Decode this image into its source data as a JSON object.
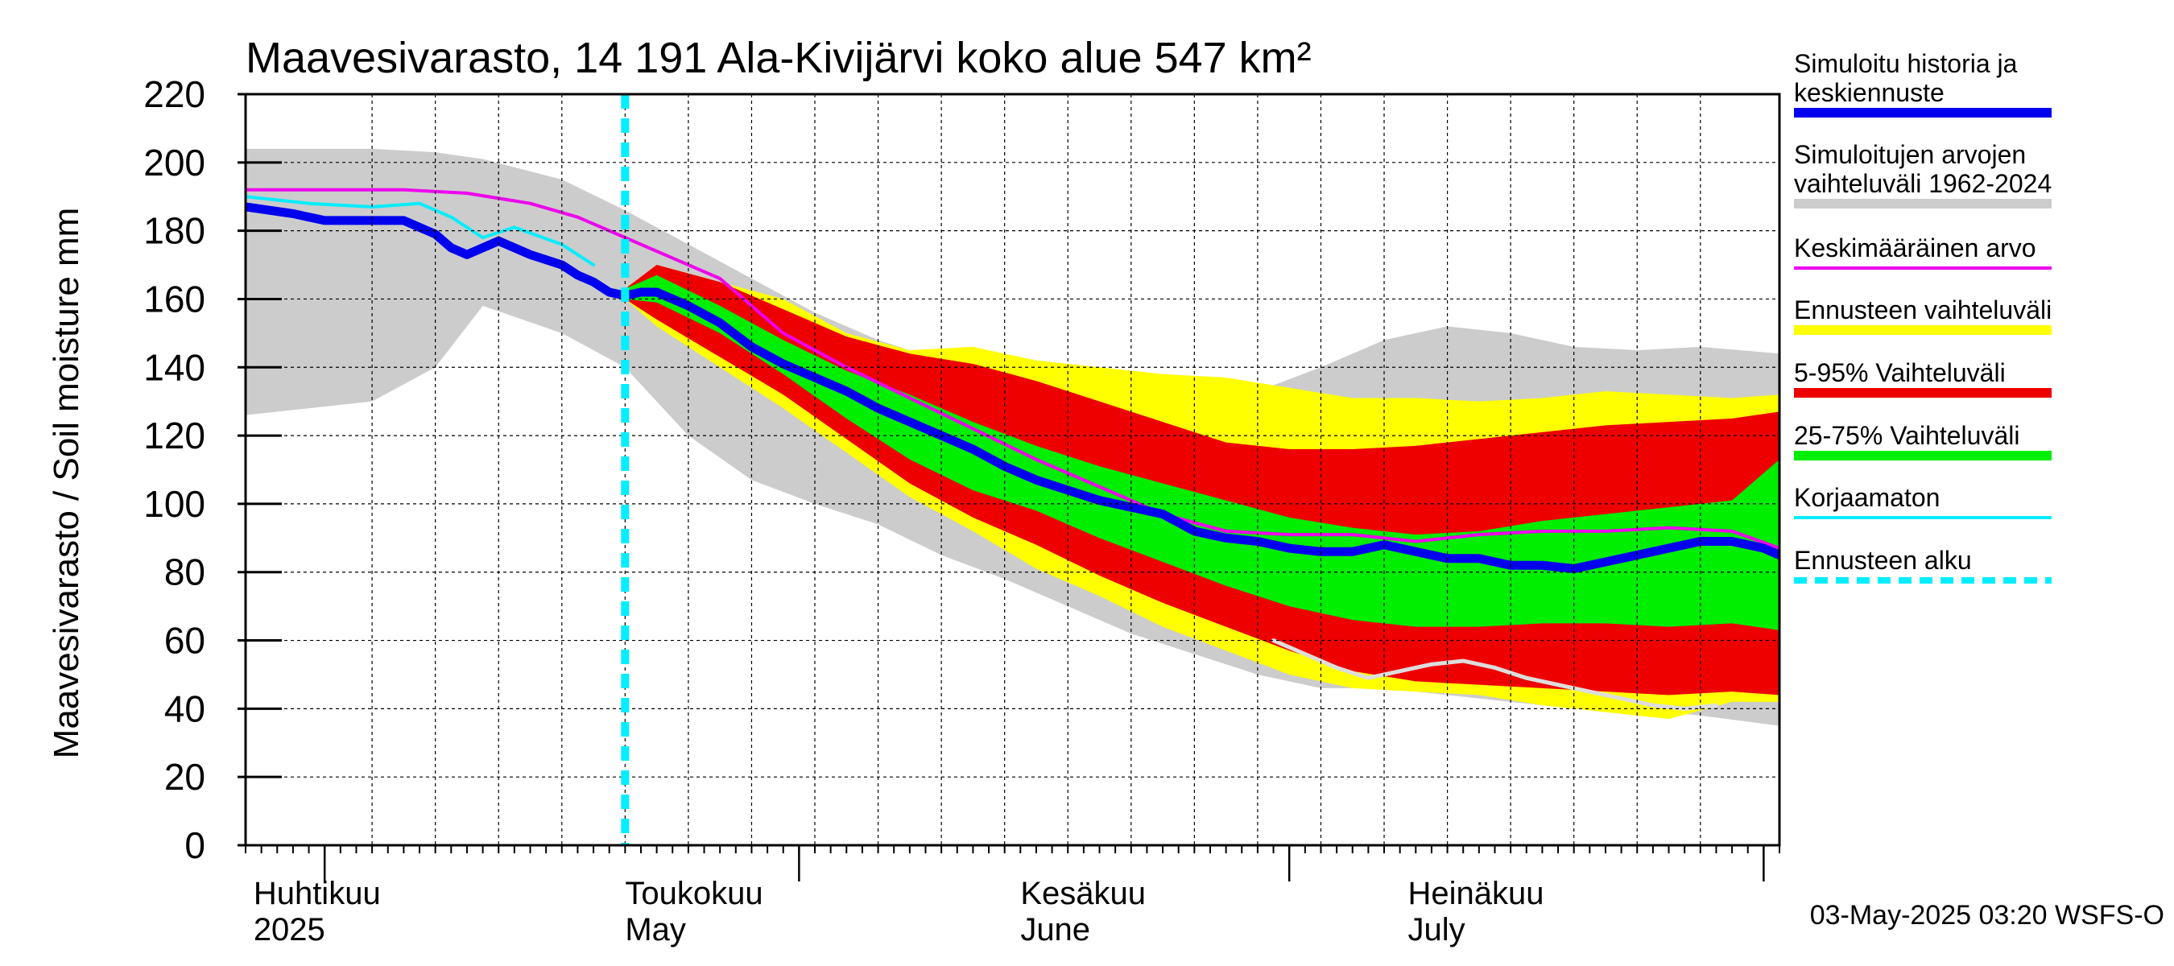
{
  "chart_data": {
    "type": "area",
    "title": "Maavesivarasto, 14 191 Ala-Kivijärvi koko alue 547 km²",
    "ylabel": "Maavesivarasto / Soil moisture   mm",
    "xlabel": "",
    "ylim": [
      0,
      220
    ],
    "yticks": [
      0,
      20,
      40,
      60,
      80,
      100,
      120,
      140,
      160,
      180,
      200,
      220
    ],
    "x_range": [
      0,
      97
    ],
    "x_unit": "days since 2025-03-27",
    "forecast_start": 24,
    "month_starts": [
      5,
      35,
      66,
      96
    ],
    "week_lines": [
      8,
      12,
      16,
      20,
      24,
      28,
      32,
      36,
      40,
      44,
      48,
      52,
      56,
      60,
      64,
      68,
      72,
      76,
      80,
      84,
      88,
      92
    ],
    "month_labels": [
      {
        "x": 0.5,
        "fi": "Huhtikuu",
        "en": "2025"
      },
      {
        "x": 24,
        "fi": "Toukokuu",
        "en": "May"
      },
      {
        "x": 49,
        "fi": "Kesäkuu",
        "en": "June"
      },
      {
        "x": 73.5,
        "fi": "Heinäkuu",
        "en": "July"
      }
    ],
    "legend": [
      {
        "label": "Simuloitu historia ja keskiennuste",
        "color": "#0000ee",
        "style": "thick"
      },
      {
        "label": "Simuloitujen arvojen vaihteluväli 1962-2024",
        "color": "#cccccc",
        "style": "thick"
      },
      {
        "label": "Keskimääräinen arvo",
        "color": "#ee00ee",
        "style": "line"
      },
      {
        "label": "Ennusteen vaihteluväli",
        "color": "#ffff00",
        "style": "thick"
      },
      {
        "label": "5-95% Vaihteluväli",
        "color": "#ee0000",
        "style": "thick"
      },
      {
        "label": "25-75% Vaihteluväli",
        "color": "#00ee00",
        "style": "thick"
      },
      {
        "label": "Korjaamaton",
        "color": "#00eeff",
        "style": "line"
      },
      {
        "label": "Ennusteen alku",
        "color": "#00eeff",
        "style": "dashed"
      }
    ],
    "series": [
      {
        "name": "Simuloitujen arvojen vaihteluväli 1962-2024",
        "kind": "band",
        "color": "#cccccc",
        "x": [
          0,
          8,
          12,
          15,
          20,
          24,
          28,
          32,
          36,
          40,
          44,
          48,
          52,
          56,
          60,
          64,
          68,
          72,
          76,
          80,
          84,
          88,
          92,
          97
        ],
        "upper": [
          204,
          204,
          203,
          201,
          195,
          186,
          176,
          166,
          156,
          148,
          142,
          140,
          140,
          138,
          136,
          133,
          140,
          148,
          152,
          150,
          146,
          145,
          146,
          144
        ],
        "lower": [
          126,
          130,
          140,
          158,
          150,
          140,
          120,
          107,
          100,
          94,
          85,
          78,
          70,
          62,
          56,
          50,
          46,
          46,
          44,
          42,
          40,
          40,
          38,
          35
        ]
      },
      {
        "name": "Ennusteen vaihteluväli",
        "kind": "band",
        "color": "#ffff00",
        "x": [
          24,
          26,
          30,
          34,
          38,
          42,
          46,
          50,
          54,
          58,
          62,
          66,
          70,
          74,
          78,
          82,
          86,
          90,
          94,
          97
        ],
        "upper": [
          163,
          170,
          165,
          160,
          150,
          145,
          146,
          142,
          140,
          138,
          137,
          134,
          131,
          131,
          130,
          131,
          133,
          132,
          131,
          132
        ],
        "lower": [
          160,
          152,
          140,
          128,
          115,
          102,
          92,
          81,
          73,
          64,
          57,
          50,
          46,
          45,
          44,
          41,
          39,
          37,
          42,
          42
        ]
      },
      {
        "name": "5-95% Vaihteluväli",
        "kind": "band",
        "color": "#ee0000",
        "x": [
          24,
          26,
          30,
          34,
          38,
          42,
          46,
          50,
          54,
          58,
          62,
          66,
          70,
          74,
          78,
          82,
          86,
          90,
          94,
          97
        ],
        "upper": [
          163,
          170,
          165,
          157,
          149,
          144,
          141,
          136,
          130,
          124,
          118,
          116,
          116,
          117,
          119,
          121,
          123,
          124,
          125,
          127
        ],
        "lower": [
          160,
          154,
          143,
          132,
          119,
          106,
          96,
          88,
          79,
          71,
          64,
          57,
          51,
          48,
          47,
          46,
          45,
          44,
          45,
          44
        ]
      },
      {
        "name": "25-75% Vaihteluväli",
        "kind": "band",
        "color": "#00ee00",
        "x": [
          24,
          26,
          30,
          34,
          38,
          42,
          46,
          50,
          54,
          58,
          62,
          66,
          70,
          74,
          78,
          82,
          86,
          90,
          94,
          97
        ],
        "upper": [
          163,
          167,
          158,
          148,
          139,
          132,
          124,
          117,
          111,
          106,
          101,
          96,
          93,
          91,
          92,
          95,
          97,
          99,
          101,
          113
        ],
        "lower": [
          160,
          159,
          150,
          138,
          125,
          113,
          104,
          98,
          90,
          83,
          76,
          70,
          66,
          64,
          64,
          65,
          65,
          64,
          65,
          63
        ]
      },
      {
        "name": "Keskimääräinen arvo",
        "kind": "line",
        "color": "#ee00ee",
        "width": 4,
        "x": [
          0,
          5,
          10,
          14,
          18,
          21,
          24,
          27,
          30,
          34,
          38,
          42,
          46,
          50,
          54,
          58,
          62,
          66,
          70,
          74,
          78,
          82,
          86,
          90,
          94,
          97
        ],
        "y": [
          192,
          192,
          192,
          191,
          188,
          184,
          178,
          172,
          166,
          150,
          140,
          131,
          122,
          113,
          105,
          97,
          92,
          91,
          91,
          89,
          91,
          92,
          92,
          93,
          92,
          87
        ]
      },
      {
        "name": "Korjaamaton",
        "kind": "line",
        "color": "#00eeff",
        "width": 4,
        "x": [
          0,
          4,
          8,
          11,
          13,
          15,
          17,
          20,
          22
        ],
        "y": [
          190,
          188,
          187,
          188,
          184,
          178,
          181,
          176,
          170
        ]
      },
      {
        "name": "Simuloitu historia ja keskiennuste",
        "kind": "line",
        "color": "#0000ee",
        "width": 11,
        "x": [
          0,
          3,
          5,
          8,
          10,
          12,
          13,
          14,
          16,
          18,
          20,
          21,
          22,
          23,
          24,
          25,
          26,
          28,
          30,
          32,
          34,
          36,
          38,
          40,
          42,
          44,
          46,
          48,
          50,
          52,
          54,
          56,
          58,
          60,
          62,
          64,
          66,
          68,
          70,
          72,
          74,
          76,
          78,
          80,
          82,
          84,
          86,
          88,
          90,
          92,
          94,
          96,
          97
        ],
        "y": [
          187,
          185,
          183,
          183,
          183,
          179,
          175,
          173,
          177,
          173,
          170,
          167,
          165,
          162,
          161,
          162,
          162,
          158,
          153,
          146,
          141,
          137,
          133,
          128,
          124,
          120,
          116,
          111,
          107,
          104,
          101,
          99,
          97,
          92,
          90,
          89,
          87,
          86,
          86,
          88,
          86,
          84,
          84,
          82,
          82,
          81,
          83,
          85,
          87,
          89,
          89,
          87,
          85
        ]
      },
      {
        "name": "Ennusteen alaraja (harmaa)",
        "kind": "line",
        "color": "#dddddd",
        "width": 5,
        "x": [
          65,
          67,
          69,
          71,
          73,
          75,
          77,
          79,
          81,
          83,
          85,
          87,
          89,
          91,
          93
        ],
        "y": [
          60,
          56,
          52,
          49,
          51,
          53,
          54,
          52,
          49,
          47,
          45,
          43,
          41,
          40,
          41
        ]
      }
    ]
  },
  "footer": "03-May-2025 03:20 WSFS-O"
}
